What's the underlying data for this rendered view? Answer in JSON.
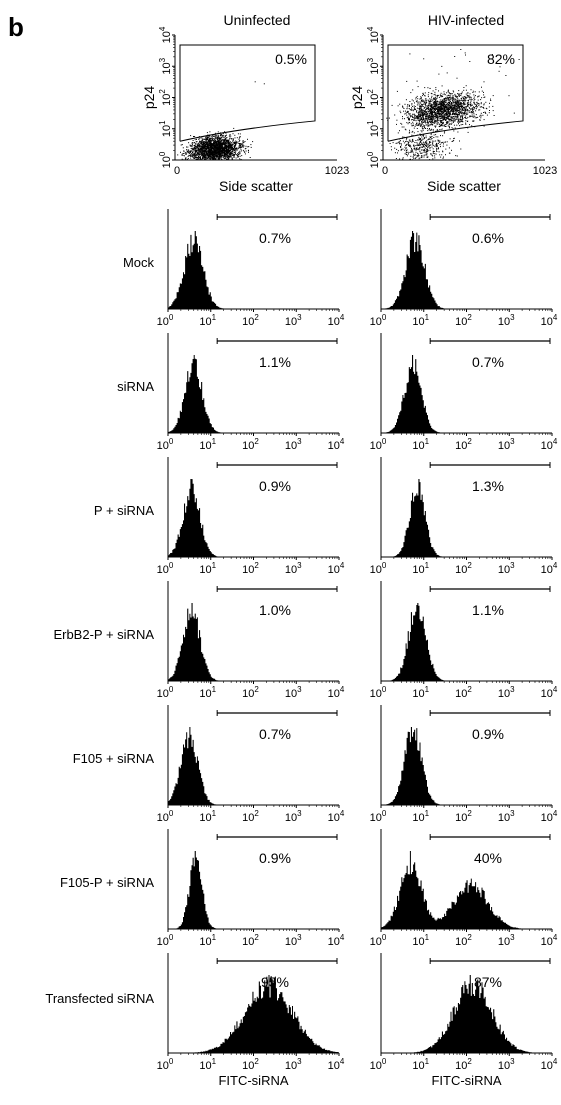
{
  "panel_letter": "b",
  "columns": [
    "Uninfected",
    "HIV-infected"
  ],
  "chart_data": [
    {
      "type": "scatter",
      "column": "Uninfected",
      "xlabel": "Side scatter",
      "ylabel": "p24",
      "xlim": [
        0,
        1023
      ],
      "ylim_log10": [
        0,
        4
      ],
      "x_ticks": [
        "0",
        "1023"
      ],
      "y_ticks": [
        "10",
        "10",
        "10",
        "10",
        "10"
      ],
      "y_tick_exponents": [
        "0",
        "1",
        "2",
        "3",
        "4"
      ],
      "gate_label": "0.5%",
      "gated_percent": 0.5,
      "clusters": [
        {
          "x_center": 250,
          "y_center_log10": 0.35,
          "x_spread": 160,
          "y_spread_log10": 0.35,
          "weight": 1
        }
      ]
    },
    {
      "type": "scatter",
      "column": "HIV-infected",
      "xlabel": "Side scatter",
      "ylabel": "p24",
      "xlim": [
        0,
        1023
      ],
      "ylim_log10": [
        0,
        4
      ],
      "x_ticks": [
        "0",
        "1023"
      ],
      "y_ticks": [
        "10",
        "10",
        "10",
        "10",
        "10"
      ],
      "y_tick_exponents": [
        "0",
        "1",
        "2",
        "3",
        "4"
      ],
      "gate_label": "82%",
      "gated_percent": 82,
      "clusters": [
        {
          "x_center": 380,
          "y_center_log10": 1.6,
          "x_spread": 230,
          "y_spread_log10": 0.45,
          "weight": 0.82
        },
        {
          "x_center": 250,
          "y_center_log10": 0.45,
          "x_spread": 180,
          "y_spread_log10": 0.4,
          "weight": 0.18
        }
      ]
    }
  ],
  "histograms": {
    "x_scale": "log10",
    "xlim_log10": [
      0,
      4
    ],
    "x_ticks": [
      "10",
      "10",
      "10",
      "10",
      "10"
    ],
    "x_tick_exponents": [
      "0",
      "1",
      "2",
      "3",
      "4"
    ],
    "xlabel": "FITC-siRNA",
    "rows": [
      {
        "label": "Mock",
        "uninfected": {
          "gate_label": "0.7%",
          "peaks": [
            {
              "center_log10": 0.6,
              "spread": 0.22,
              "weight": 1
            }
          ]
        },
        "infected": {
          "gate_label": "0.6%",
          "peaks": [
            {
              "center_log10": 0.8,
              "spread": 0.22,
              "weight": 1
            }
          ]
        }
      },
      {
        "label": "siRNA",
        "uninfected": {
          "gate_label": "1.1%",
          "peaks": [
            {
              "center_log10": 0.6,
              "spread": 0.2,
              "weight": 1
            }
          ]
        },
        "infected": {
          "gate_label": "0.7%",
          "peaks": [
            {
              "center_log10": 0.75,
              "spread": 0.2,
              "weight": 1
            }
          ]
        }
      },
      {
        "label": "P + siRNA",
        "uninfected": {
          "gate_label": "0.9%",
          "peaks": [
            {
              "center_log10": 0.55,
              "spread": 0.2,
              "weight": 1
            }
          ]
        },
        "infected": {
          "gate_label": "1.3%",
          "peaks": [
            {
              "center_log10": 0.85,
              "spread": 0.18,
              "weight": 1
            }
          ]
        }
      },
      {
        "label": "ErbB2-P + siRNA",
        "uninfected": {
          "gate_label": "1.0%",
          "peaks": [
            {
              "center_log10": 0.55,
              "spread": 0.2,
              "weight": 1
            }
          ]
        },
        "infected": {
          "gate_label": "1.1%",
          "peaks": [
            {
              "center_log10": 0.85,
              "spread": 0.2,
              "weight": 1
            }
          ]
        }
      },
      {
        "label": "F105 + siRNA",
        "uninfected": {
          "gate_label": "0.7%",
          "peaks": [
            {
              "center_log10": 0.5,
              "spread": 0.2,
              "weight": 1
            }
          ]
        },
        "infected": {
          "gate_label": "0.9%",
          "peaks": [
            {
              "center_log10": 0.75,
              "spread": 0.2,
              "weight": 1
            }
          ]
        }
      },
      {
        "label": "F105-P + siRNA",
        "uninfected": {
          "gate_label": "0.9%",
          "peaks": [
            {
              "center_log10": 0.65,
              "spread": 0.15,
              "weight": 1
            }
          ]
        },
        "infected": {
          "gate_label": "40%",
          "peaks": [
            {
              "center_log10": 0.7,
              "spread": 0.25,
              "weight": 0.6
            },
            {
              "center_log10": 2.1,
              "spread": 0.4,
              "weight": 0.4
            }
          ]
        }
      },
      {
        "label": "Transfected siRNA",
        "uninfected": {
          "gate_label": "95%",
          "peaks": [
            {
              "center_log10": 2.35,
              "spread": 0.55,
              "weight": 1
            }
          ]
        },
        "infected": {
          "gate_label": "87%",
          "peaks": [
            {
              "center_log10": 2.15,
              "spread": 0.45,
              "weight": 1
            }
          ]
        }
      }
    ]
  }
}
